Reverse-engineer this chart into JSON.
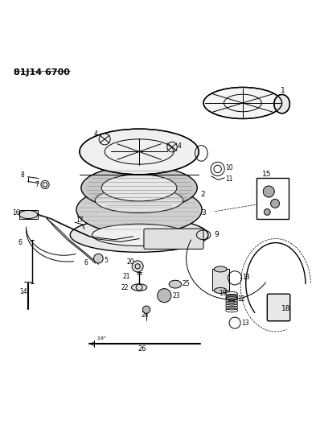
{
  "title": "81J14 6700",
  "bg_color": "#ffffff",
  "line_color": "#000000",
  "fig_width": 3.93,
  "fig_height": 5.33,
  "dpi": 100
}
